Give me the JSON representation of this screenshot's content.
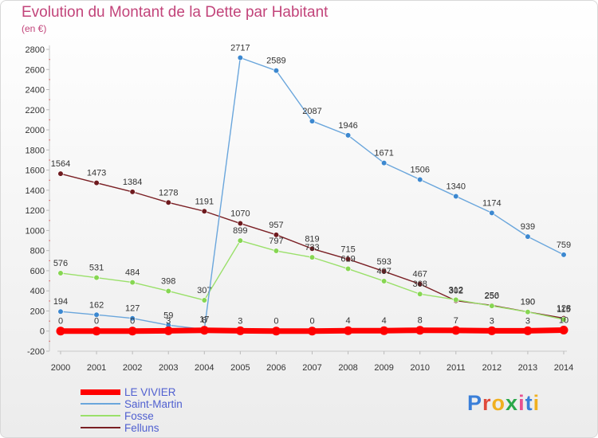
{
  "title": "Evolution du Montant de la Dette par Habitant",
  "subtitle": "(en €)",
  "logo": {
    "text": "Proxiti",
    "colors": [
      "#3a7fd9",
      "#e04a3a",
      "#f0b020",
      "#2aa84a",
      "#e85090",
      "#3a7fd9",
      "#f0b020"
    ]
  },
  "chart_data": {
    "type": "line",
    "x": [
      2000,
      2001,
      2002,
      2003,
      2004,
      2005,
      2006,
      2007,
      2008,
      2009,
      2010,
      2011,
      2012,
      2013,
      2014
    ],
    "ylim": [
      -200,
      2800
    ],
    "yticks": [
      -200,
      0,
      200,
      400,
      600,
      800,
      1000,
      1200,
      1400,
      1600,
      1800,
      2000,
      2200,
      2400,
      2600,
      2800
    ],
    "grid": false,
    "legend_position": "bottom-left",
    "series": [
      {
        "name": "Felluns",
        "color": "#7a1f24",
        "point_color": "#6e1a1e",
        "values": [
          1564,
          1473,
          1384,
          1278,
          1191,
          1070,
          957,
          819,
          715,
          593,
          467,
          302,
          256,
          190,
          128
        ]
      },
      {
        "name": "Fosse",
        "color": "#9ae06a",
        "point_color": "#86d652",
        "values": [
          576,
          531,
          484,
          398,
          307,
          899,
          797,
          733,
          619,
          497,
          368,
          312,
          250,
          190,
          115
        ]
      },
      {
        "name": "Saint-Martin",
        "color": "#6aa6dc",
        "point_color": "#3c88d0",
        "values": [
          194,
          162,
          127,
          59,
          17,
          2717,
          2589,
          2087,
          1946,
          1671,
          1506,
          1340,
          1174,
          939,
          759
        ]
      },
      {
        "name": "LE VIVIER",
        "color": "#ff0000",
        "point_color": "#ff0000",
        "values": [
          0,
          0,
          0,
          3,
          8,
          3,
          0,
          0,
          4,
          4,
          8,
          7,
          3,
          3,
          10
        ]
      }
    ]
  }
}
